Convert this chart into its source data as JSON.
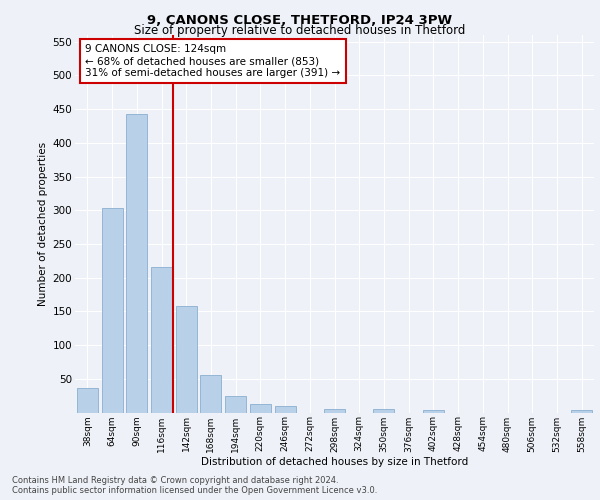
{
  "title1": "9, CANONS CLOSE, THETFORD, IP24 3PW",
  "title2": "Size of property relative to detached houses in Thetford",
  "xlabel": "Distribution of detached houses by size in Thetford",
  "ylabel": "Number of detached properties",
  "footer1": "Contains HM Land Registry data © Crown copyright and database right 2024.",
  "footer2": "Contains public sector information licensed under the Open Government Licence v3.0.",
  "bar_labels": [
    "38sqm",
    "64sqm",
    "90sqm",
    "116sqm",
    "142sqm",
    "168sqm",
    "194sqm",
    "220sqm",
    "246sqm",
    "272sqm",
    "298sqm",
    "324sqm",
    "350sqm",
    "376sqm",
    "402sqm",
    "428sqm",
    "454sqm",
    "480sqm",
    "506sqm",
    "532sqm",
    "558sqm"
  ],
  "bar_values": [
    36,
    303,
    443,
    216,
    158,
    56,
    25,
    13,
    10,
    0,
    5,
    0,
    5,
    0,
    3,
    0,
    0,
    0,
    0,
    0,
    4
  ],
  "bar_color": "#b8d0e8",
  "bar_edge_color": "#8ab0d0",
  "vline_color": "#cc0000",
  "vline_x": 3.45,
  "annotation_text": "9 CANONS CLOSE: 124sqm\n← 68% of detached houses are smaller (853)\n31% of semi-detached houses are larger (391) →",
  "annotation_box_color": "#ffffff",
  "annotation_box_edge_color": "#cc0000",
  "ylim": [
    0,
    560
  ],
  "yticks": [
    0,
    50,
    100,
    150,
    200,
    250,
    300,
    350,
    400,
    450,
    500,
    550
  ],
  "bg_color": "#eef2f8",
  "plot_bg_color": "#eef2f8",
  "grid_color": "#ffffff"
}
